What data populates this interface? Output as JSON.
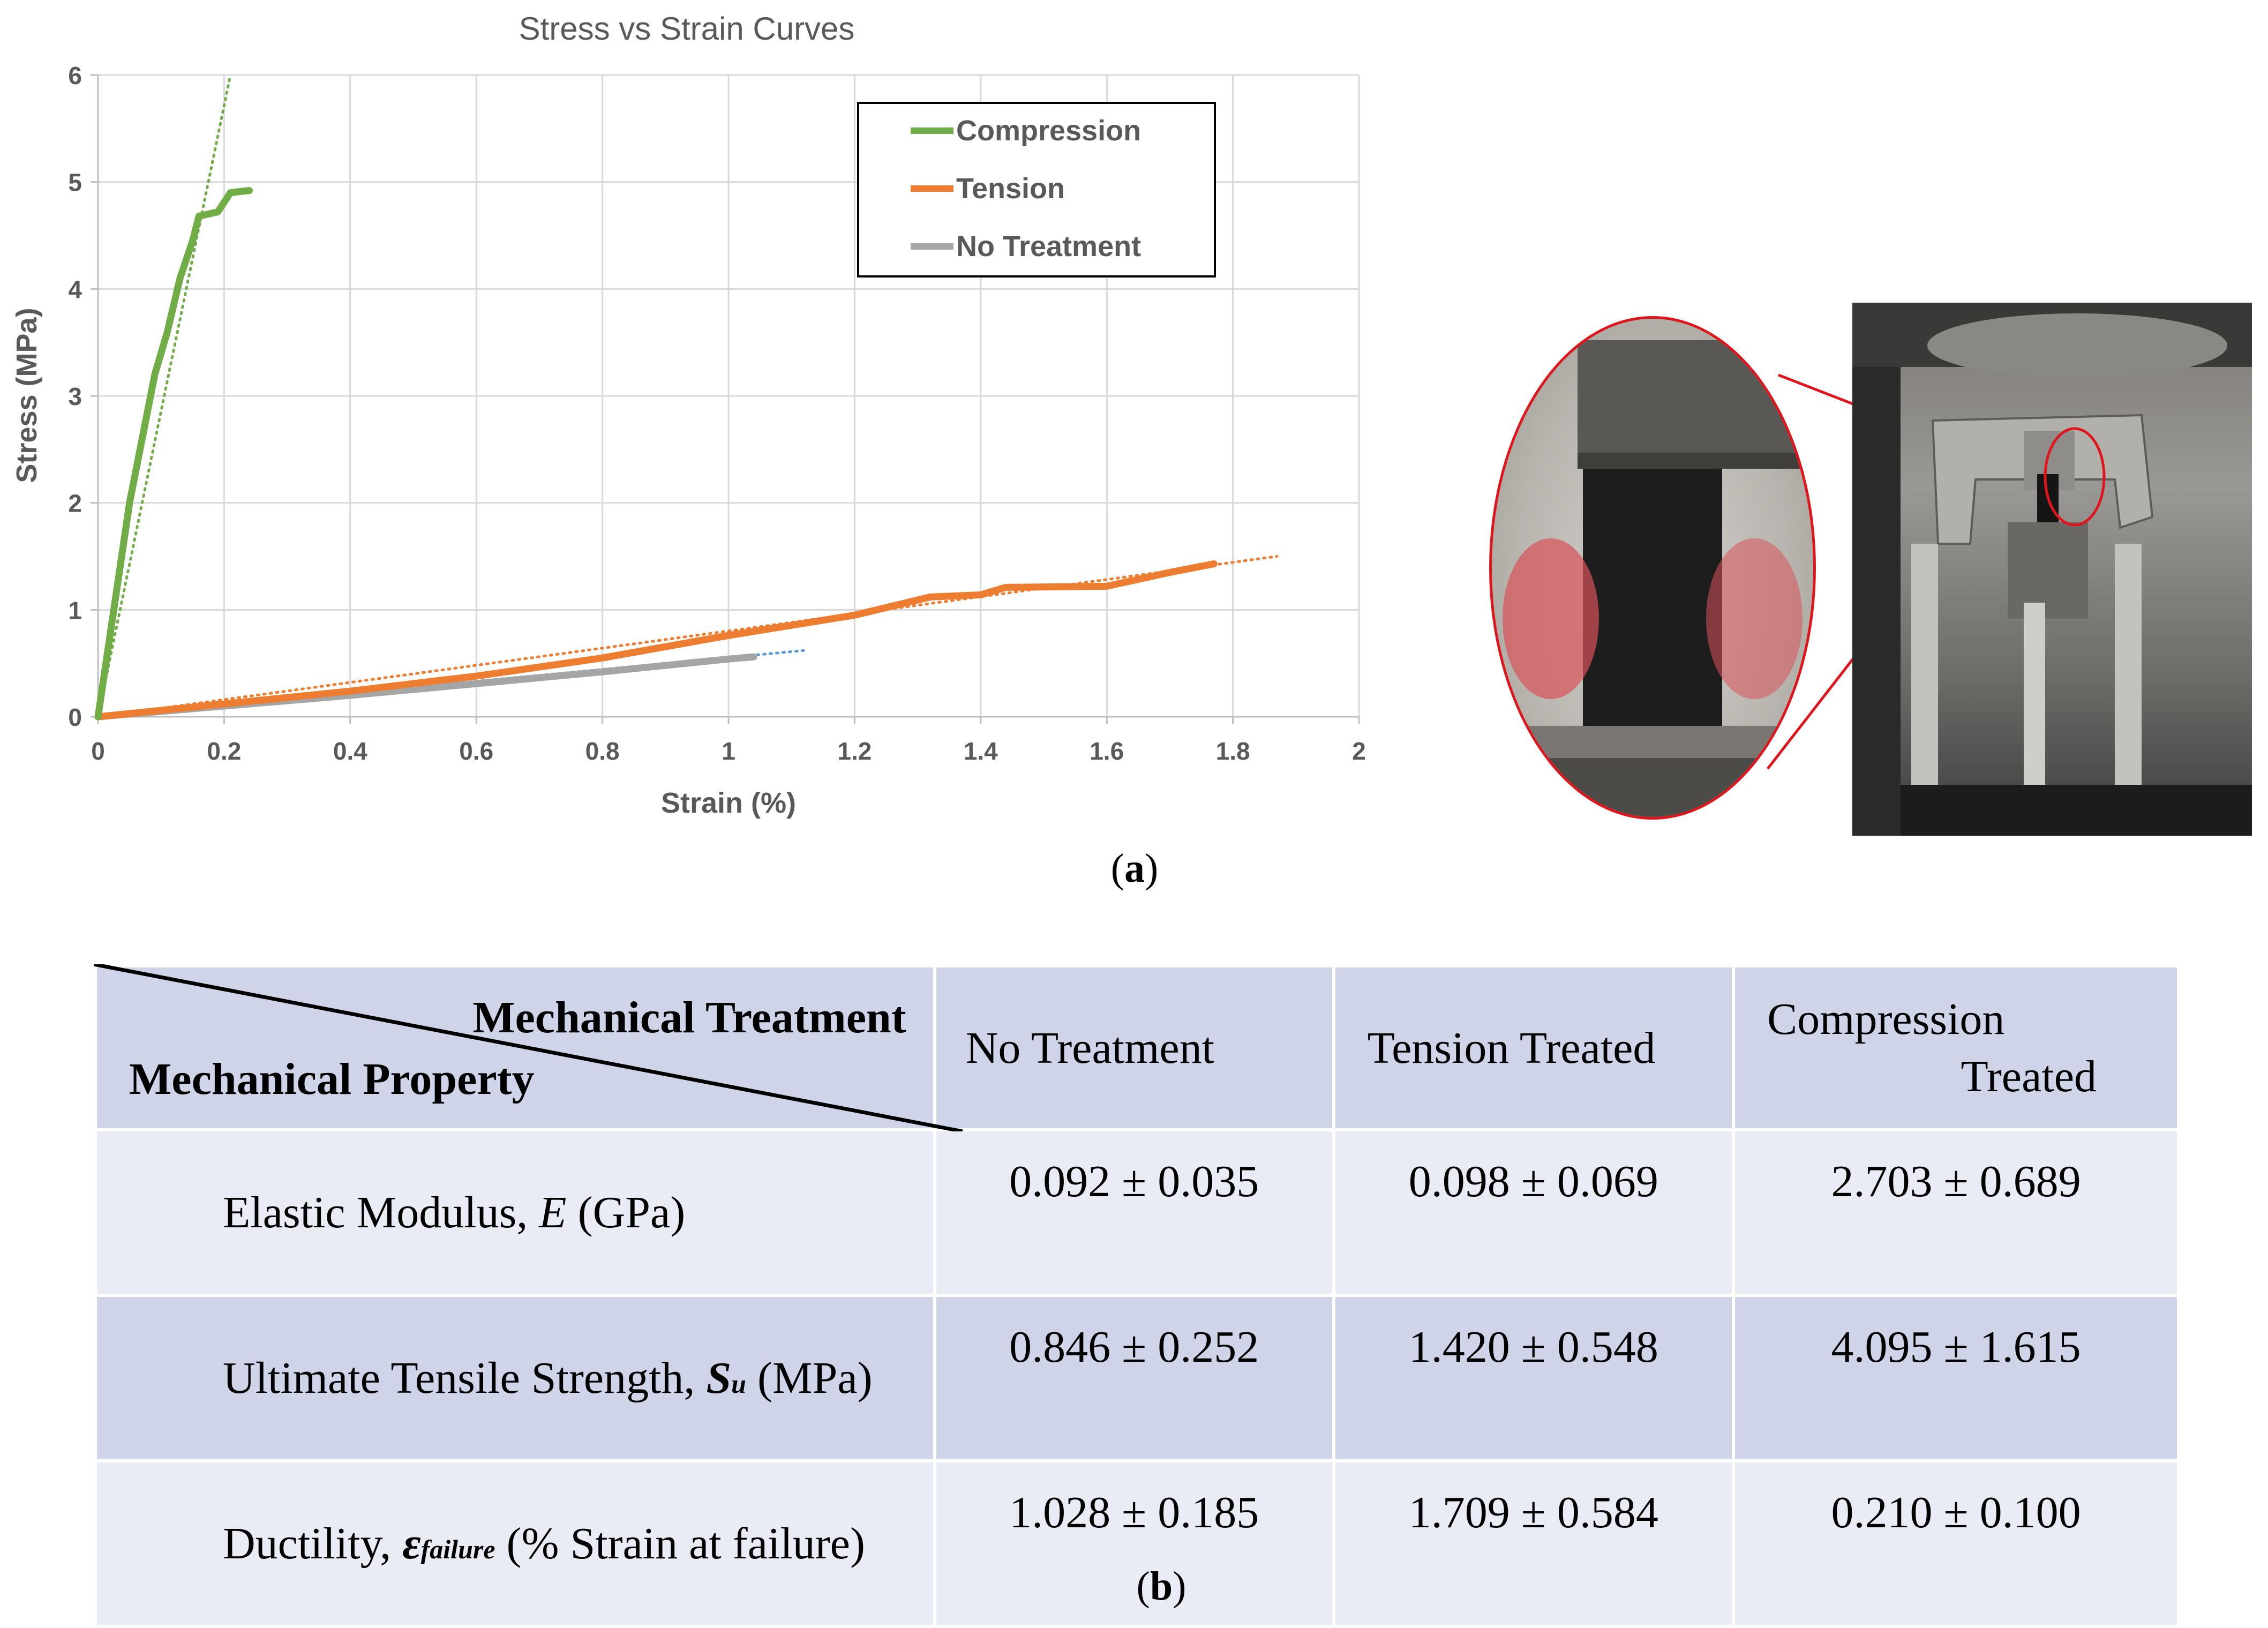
{
  "panel_a_label": "a",
  "panel_b_label": "b",
  "chart_data": {
    "type": "line",
    "title": "Stress vs Strain Curves",
    "xlabel": "Strain (%)",
    "ylabel": "Stress (MPa)",
    "xlim": [
      0,
      2
    ],
    "ylim": [
      0,
      6
    ],
    "xticks": [
      "0",
      "0.2",
      "0.4",
      "0.6",
      "0.8",
      "1",
      "1.2",
      "1.4",
      "1.6",
      "1.8",
      "2"
    ],
    "yticks": [
      "0",
      "1",
      "2",
      "3",
      "4",
      "5",
      "6"
    ],
    "grid": "vertical and horizontal, light gray",
    "legend_position": "top-right",
    "series": [
      {
        "name": "Compression",
        "color": "#70ad47",
        "points": [
          [
            0,
            0
          ],
          [
            0.01,
            0.4
          ],
          [
            0.03,
            1.2
          ],
          [
            0.05,
            2.0
          ],
          [
            0.07,
            2.6
          ],
          [
            0.09,
            3.2
          ],
          [
            0.11,
            3.6
          ],
          [
            0.13,
            4.1
          ],
          [
            0.15,
            4.45
          ],
          [
            0.16,
            4.68
          ],
          [
            0.19,
            4.72
          ],
          [
            0.21,
            4.9
          ],
          [
            0.24,
            4.92
          ]
        ],
        "trendline": [
          [
            0,
            0
          ],
          [
            0.21,
            6.0
          ]
        ]
      },
      {
        "name": "Tension",
        "color": "#ed7d31",
        "points": [
          [
            0,
            0
          ],
          [
            0.1,
            0.06
          ],
          [
            0.2,
            0.12
          ],
          [
            0.4,
            0.24
          ],
          [
            0.6,
            0.38
          ],
          [
            0.8,
            0.55
          ],
          [
            1.0,
            0.76
          ],
          [
            1.2,
            0.95
          ],
          [
            1.32,
            1.12
          ],
          [
            1.4,
            1.14
          ],
          [
            1.44,
            1.21
          ],
          [
            1.6,
            1.22
          ],
          [
            1.7,
            1.35
          ],
          [
            1.77,
            1.43
          ]
        ],
        "trendline": [
          [
            0,
            0
          ],
          [
            1.87,
            1.5
          ]
        ]
      },
      {
        "name": "No Treatment",
        "color": "#a5a5a5",
        "points": [
          [
            0,
            0
          ],
          [
            0.2,
            0.1
          ],
          [
            0.4,
            0.2
          ],
          [
            0.6,
            0.31
          ],
          [
            0.8,
            0.42
          ],
          [
            1.0,
            0.54
          ],
          [
            1.04,
            0.56
          ]
        ],
        "trendline": [
          [
            0,
            0
          ],
          [
            1.12,
            0.62
          ]
        ],
        "trendline_color": "#5b9bd5"
      }
    ]
  },
  "photo": {
    "description_icon": "test-fixture-photo"
  },
  "table": {
    "corner_top": "Mechanical Treatment",
    "corner_bottom": "Mechanical Property",
    "columns": [
      "No Treatment",
      "Tension Treated",
      "Compression"
    ],
    "col3_line2": "Treated",
    "rows": [
      {
        "prop_prefix": "Elastic Modulus, ",
        "prop_symbol": "E",
        "prop_sub": "",
        "prop_suffix": " (GPa)",
        "values": [
          "0.092 ± 0.035",
          "0.098 ± 0.069",
          "2.703 ± 0.689"
        ]
      },
      {
        "prop_prefix": "Ultimate Tensile Strength, ",
        "prop_symbol": "S",
        "prop_sub": "u",
        "prop_suffix": " (MPa)",
        "values": [
          "0.846 ± 0.252",
          "1.420 ± 0.548",
          "4.095 ± 1.615"
        ]
      },
      {
        "prop_prefix": "Ductility, ",
        "prop_symbol": "ε",
        "prop_sub": "failure",
        "prop_suffix": " (% Strain at failure)",
        "values": [
          "1.028 ± 0.185",
          "1.709 ± 0.584",
          "0.210 ± 0.100"
        ]
      }
    ]
  }
}
